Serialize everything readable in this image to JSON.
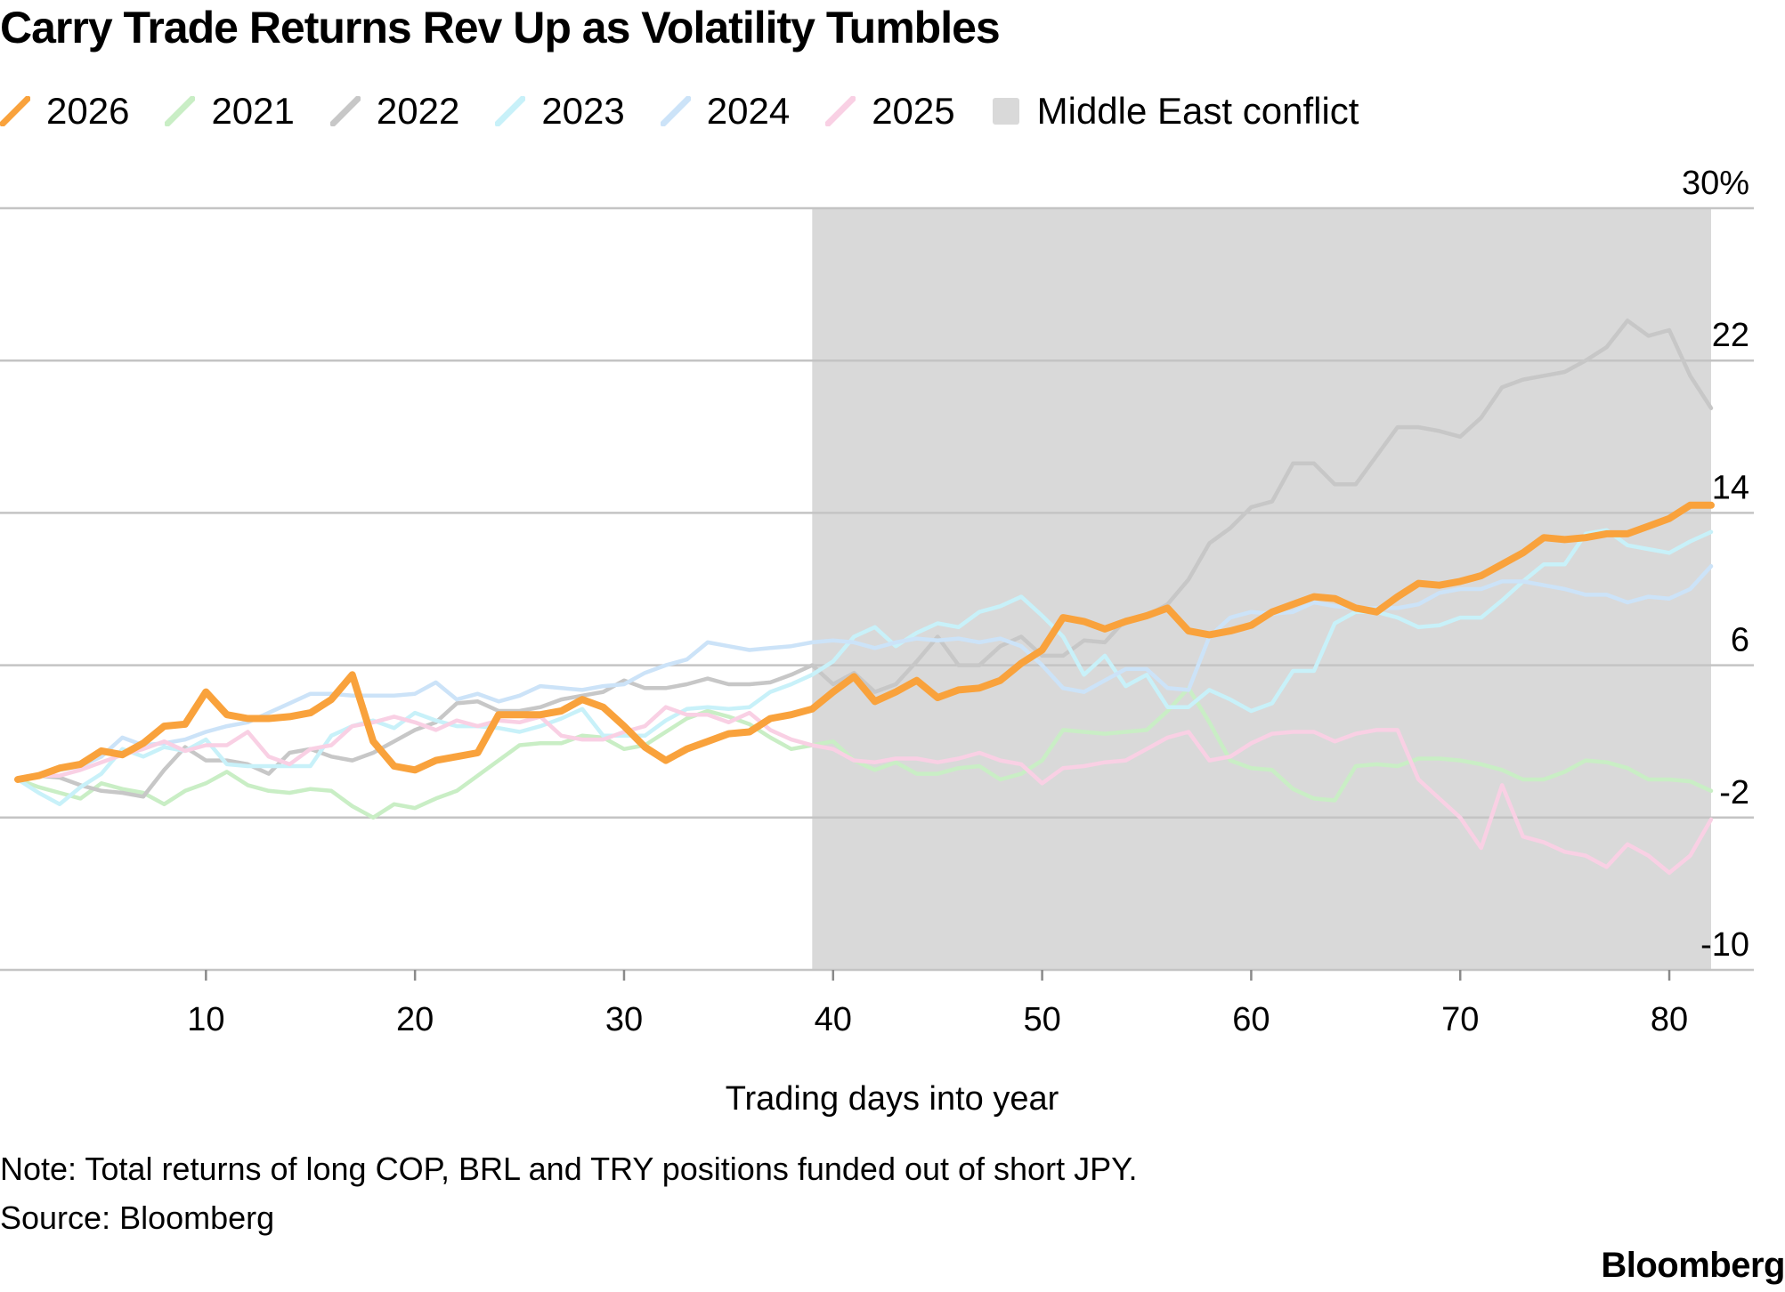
{
  "chart_data": {
    "type": "line",
    "title": "Carry Trade Returns Rev Up as Volatility Tumbles",
    "xlabel": "Trading days into year",
    "ylabel": "",
    "xlim": [
      1,
      82
    ],
    "ylim": [
      -10,
      30
    ],
    "x_ticks": [
      10,
      20,
      30,
      40,
      50,
      60,
      70,
      80
    ],
    "y_ticks": [
      30,
      22,
      14,
      6,
      -2,
      -10
    ],
    "y_tick_labels": [
      "30%",
      "22",
      "14",
      "6",
      "-2",
      "-10"
    ],
    "shaded_region": {
      "label": "Middle East conflict",
      "x_start": 39,
      "x_end": 82,
      "color": "#d9d9d9"
    },
    "series": [
      {
        "name": "2021",
        "color": "#c9eec5",
        "start_x": 1,
        "values": [
          0.0,
          -0.4,
          -0.7,
          -1.0,
          -0.2,
          -0.5,
          -0.7,
          -1.3,
          -0.6,
          -0.2,
          0.4,
          -0.3,
          -0.6,
          -0.7,
          -0.5,
          -0.6,
          -1.4,
          -2.0,
          -1.3,
          -1.5,
          -1.0,
          -0.6,
          0.2,
          1.0,
          1.8,
          1.9,
          1.9,
          2.3,
          2.2,
          1.6,
          1.8,
          2.5,
          3.2,
          3.6,
          3.3,
          2.9,
          2.2,
          1.6,
          1.8,
          2.0,
          1.0,
          0.5,
          0.9,
          0.3,
          0.3,
          0.6,
          0.7,
          0.0,
          0.3,
          1.0,
          2.6,
          2.5,
          2.4,
          2.5,
          2.6,
          3.6,
          4.8,
          3.0,
          1.0,
          0.6,
          0.5,
          -0.5,
          -1.0,
          -1.1,
          0.7,
          0.8,
          0.7,
          1.1,
          1.1,
          1.0,
          0.8,
          0.5,
          0.0,
          0.0,
          0.4,
          1.0,
          0.9,
          0.6,
          0.0,
          0.0,
          -0.1,
          -0.6
        ]
      },
      {
        "name": "2022",
        "color": "#c7c7c7",
        "start_x": 1,
        "values": [
          0.0,
          0.2,
          0.1,
          -0.3,
          -0.6,
          -0.7,
          -0.9,
          0.5,
          1.7,
          1.0,
          1.0,
          0.8,
          0.3,
          1.4,
          1.6,
          1.2,
          1.0,
          1.4,
          2.0,
          2.6,
          3.0,
          4.0,
          4.1,
          3.6,
          3.6,
          3.8,
          4.2,
          4.4,
          4.6,
          5.2,
          4.8,
          4.8,
          5.0,
          5.3,
          5.0,
          5.0,
          5.1,
          5.5,
          6.0,
          5.0,
          5.6,
          4.6,
          5.0,
          6.2,
          7.5,
          6.0,
          6.0,
          7.0,
          7.5,
          6.5,
          6.5,
          7.3,
          7.2,
          8.4,
          8.6,
          9.2,
          10.5,
          12.4,
          13.2,
          14.3,
          14.6,
          16.6,
          16.6,
          15.5,
          15.5,
          17.0,
          18.5,
          18.5,
          18.3,
          18.0,
          19.0,
          20.6,
          21.0,
          21.2,
          21.4,
          22.0,
          22.7,
          24.1,
          23.3,
          23.6,
          21.2,
          19.5
        ]
      },
      {
        "name": "2023",
        "color": "#c8f1f9",
        "start_x": 1,
        "values": [
          0.0,
          -0.7,
          -1.3,
          -0.4,
          0.3,
          1.6,
          1.2,
          1.7,
          1.5,
          2.1,
          0.8,
          0.7,
          0.7,
          0.7,
          0.7,
          2.3,
          2.8,
          3.1,
          2.7,
          3.5,
          3.1,
          2.8,
          2.8,
          2.7,
          2.5,
          2.8,
          3.2,
          3.7,
          2.3,
          2.3,
          2.3,
          3.1,
          3.7,
          3.8,
          3.7,
          3.8,
          4.6,
          5.0,
          5.5,
          6.2,
          7.5,
          8.0,
          7.0,
          7.7,
          8.2,
          8.0,
          8.8,
          9.1,
          9.6,
          8.6,
          7.5,
          5.5,
          6.5,
          4.9,
          5.5,
          3.8,
          3.8,
          4.7,
          4.2,
          3.6,
          4.0,
          5.7,
          5.7,
          8.2,
          8.8,
          8.8,
          8.5,
          8.0,
          8.1,
          8.5,
          8.5,
          9.4,
          10.4,
          11.3,
          11.3,
          12.9,
          13.1,
          12.3,
          12.1,
          11.9,
          12.5,
          13.0
        ]
      },
      {
        "name": "2024",
        "color": "#cce3f8",
        "start_x": 1,
        "values": [
          0.0,
          0.2,
          0.5,
          0.7,
          1.2,
          2.2,
          1.8,
          1.9,
          2.1,
          2.5,
          2.8,
          3.0,
          3.5,
          4.0,
          4.5,
          4.5,
          4.4,
          4.4,
          4.4,
          4.5,
          5.1,
          4.2,
          4.5,
          4.1,
          4.4,
          4.9,
          4.8,
          4.7,
          4.9,
          5.0,
          5.6,
          6.0,
          6.3,
          7.2,
          7.0,
          6.8,
          6.9,
          7.0,
          7.2,
          7.3,
          7.2,
          6.9,
          7.2,
          7.4,
          7.3,
          7.4,
          7.2,
          7.4,
          7.0,
          6.0,
          4.8,
          4.6,
          5.2,
          5.8,
          5.8,
          4.8,
          4.7,
          7.5,
          8.5,
          8.8,
          8.7,
          8.8,
          9.3,
          9.1,
          9.0,
          9.0,
          9.0,
          9.2,
          9.8,
          10.0,
          10.0,
          10.4,
          10.4,
          10.2,
          10.0,
          9.7,
          9.7,
          9.3,
          9.6,
          9.5,
          10.0,
          11.2
        ]
      },
      {
        "name": "2025",
        "color": "#f9d0e4",
        "start_x": 1,
        "values": [
          0.0,
          0.2,
          0.2,
          0.5,
          0.9,
          1.3,
          1.6,
          2.0,
          1.5,
          1.8,
          1.8,
          2.5,
          1.2,
          0.8,
          1.6,
          1.8,
          2.8,
          3.0,
          3.3,
          3.0,
          2.6,
          3.1,
          2.8,
          3.1,
          3.0,
          3.3,
          2.3,
          2.1,
          2.1,
          2.5,
          2.8,
          3.8,
          3.4,
          3.4,
          3.0,
          3.5,
          2.6,
          2.1,
          1.8,
          1.6,
          1.0,
          0.9,
          1.1,
          1.1,
          0.9,
          1.1,
          1.4,
          1.0,
          0.8,
          -0.2,
          0.6,
          0.7,
          0.9,
          1.0,
          1.6,
          2.2,
          2.5,
          1.0,
          1.2,
          1.9,
          2.4,
          2.5,
          2.5,
          2.0,
          2.4,
          2.6,
          2.6,
          0.0,
          -1.0,
          -2.0,
          -3.6,
          -0.3,
          -3.0,
          -3.3,
          -3.8,
          -4.0,
          -4.6,
          -3.4,
          -4.0,
          -4.9,
          -4.0,
          -2.1
        ]
      },
      {
        "name": "2026",
        "color": "#f9a23c",
        "start_x": 1,
        "values": [
          0.0,
          0.2,
          0.6,
          0.8,
          1.5,
          1.3,
          1.9,
          2.8,
          2.9,
          4.6,
          3.4,
          3.2,
          3.2,
          3.3,
          3.5,
          4.2,
          5.5,
          2.0,
          0.7,
          0.5,
          1.0,
          1.2,
          1.4,
          3.4,
          3.4,
          3.4,
          3.6,
          4.2,
          3.8,
          2.8,
          1.7,
          1.0,
          1.6,
          2.0,
          2.4,
          2.5,
          3.2,
          3.4,
          3.7,
          4.6,
          5.4,
          4.1,
          4.6,
          5.2,
          4.3,
          4.7,
          4.8,
          5.2,
          6.1,
          6.8,
          8.5,
          8.3,
          7.9,
          8.3,
          8.6,
          9.0,
          7.8,
          7.6,
          7.8,
          8.1,
          8.8,
          9.2,
          9.6,
          9.5,
          9.0,
          8.8,
          9.6,
          10.3,
          10.2,
          10.4,
          10.7,
          11.3,
          11.9,
          12.7,
          12.6,
          12.7,
          12.9,
          12.9,
          13.3,
          13.7,
          14.4,
          14.4
        ]
      }
    ]
  },
  "legend": [
    {
      "label": "2026",
      "color": "#f9a23c",
      "kind": "line"
    },
    {
      "label": "2021",
      "color": "#c9eec5",
      "kind": "line"
    },
    {
      "label": "2022",
      "color": "#c7c7c7",
      "kind": "line"
    },
    {
      "label": "2023",
      "color": "#c8f1f9",
      "kind": "line"
    },
    {
      "label": "2024",
      "color": "#cce3f8",
      "kind": "line"
    },
    {
      "label": "2025",
      "color": "#f9d0e4",
      "kind": "line"
    },
    {
      "label": "Middle East conflict",
      "color": "#d9d9d9",
      "kind": "box"
    }
  ],
  "footer": {
    "note": "Note: Total returns of long COP, BRL and TRY positions funded out of short JPY.",
    "source": "Source: Bloomberg",
    "brand": "Bloomberg"
  }
}
